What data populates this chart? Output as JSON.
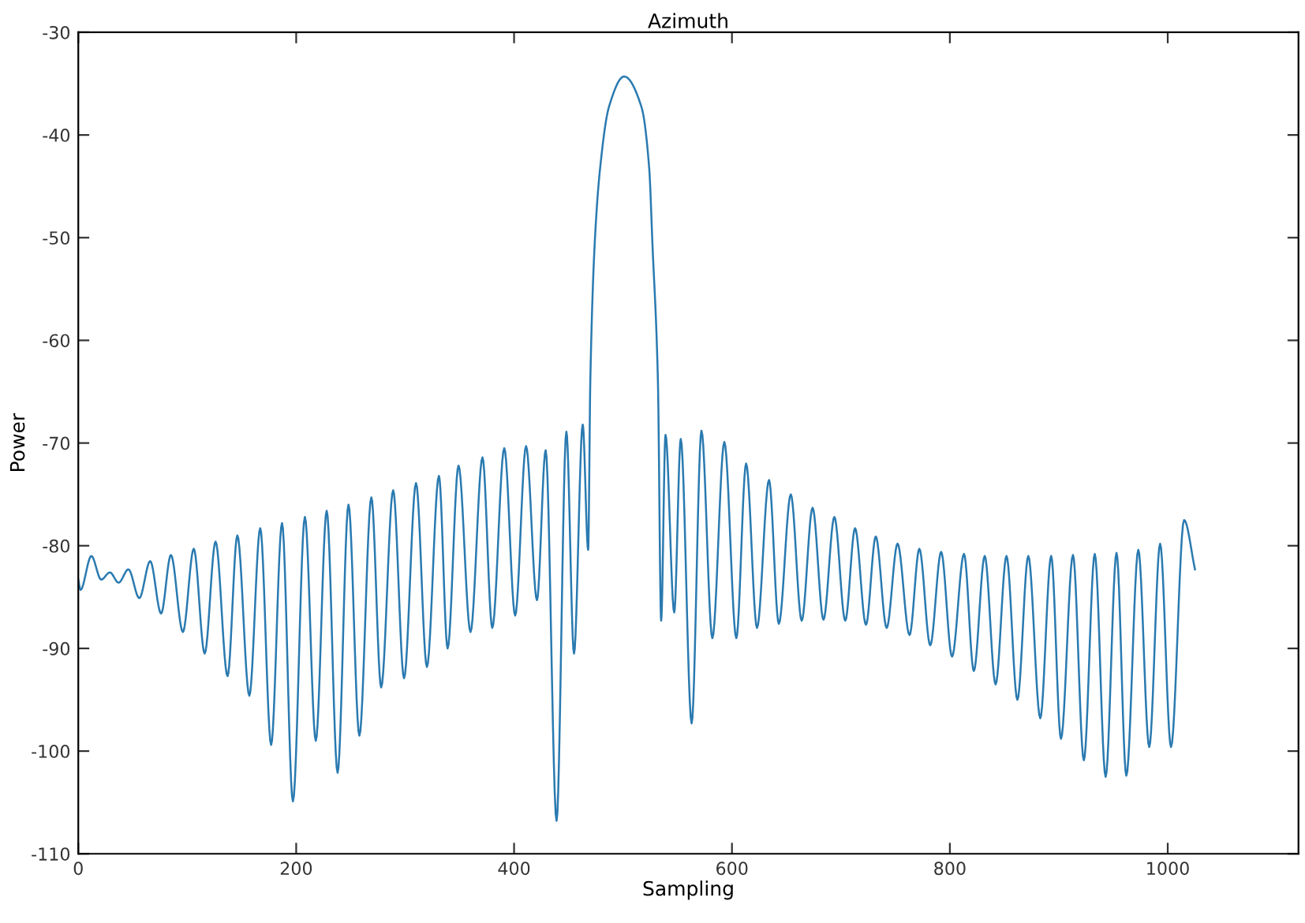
{
  "chart_data": {
    "type": "line",
    "title": "Azimuth",
    "xlabel": "Sampling",
    "ylabel": "Power",
    "x": [
      0,
      2,
      12,
      21,
      29,
      37,
      46,
      56,
      66,
      76,
      85,
      96,
      106,
      116,
      126,
      137,
      146,
      157,
      167,
      177,
      187,
      197,
      208,
      218,
      228,
      238,
      248,
      258,
      269,
      278,
      289,
      299,
      310,
      320,
      331,
      339,
      349,
      360,
      371,
      380,
      391,
      401,
      411,
      421,
      429,
      439,
      448,
      455,
      463,
      468,
      470,
      474,
      479,
      487,
      501,
      517,
      524,
      527,
      532,
      535,
      539,
      547,
      553,
      563,
      572,
      582,
      593,
      604,
      613,
      623,
      634,
      643,
      654,
      664,
      674,
      684,
      694,
      704,
      713,
      723,
      732,
      742,
      752,
      763,
      772,
      782,
      792,
      802,
      813,
      822,
      832,
      842,
      852,
      862,
      872,
      883,
      893,
      902,
      913,
      923,
      933,
      943,
      953,
      962,
      973,
      983,
      993,
      1003,
      1015,
      1025
    ],
    "series": [
      {
        "color": "#2a7ab0",
        "values": [
          -83.3,
          -84.3,
          -81.0,
          -83.3,
          -82.6,
          -83.6,
          -82.3,
          -85.1,
          -81.5,
          -86.6,
          -80.9,
          -88.4,
          -80.3,
          -90.5,
          -79.6,
          -92.7,
          -79.0,
          -94.6,
          -78.3,
          -99.4,
          -77.8,
          -104.9,
          -77.2,
          -99.0,
          -76.6,
          -102.1,
          -76.0,
          -98.5,
          -75.3,
          -93.8,
          -74.6,
          -92.9,
          -73.9,
          -91.8,
          -73.2,
          -90.0,
          -72.2,
          -88.4,
          -71.4,
          -88.0,
          -70.5,
          -86.8,
          -70.3,
          -85.3,
          -70.7,
          -106.8,
          -68.9,
          -90.5,
          -68.2,
          -80.4,
          -63.8,
          -50.6,
          -43.2,
          -37.3,
          -34.3,
          -37.3,
          -43.2,
          -50.6,
          -63.8,
          -87.3,
          -69.2,
          -86.5,
          -69.6,
          -97.3,
          -68.8,
          -89.0,
          -69.9,
          -89.0,
          -72.0,
          -88.0,
          -73.6,
          -87.6,
          -75.0,
          -87.3,
          -76.3,
          -87.2,
          -77.2,
          -87.3,
          -78.3,
          -87.7,
          -79.1,
          -88.0,
          -79.8,
          -88.7,
          -80.3,
          -89.7,
          -80.6,
          -90.8,
          -80.8,
          -92.2,
          -81.0,
          -93.5,
          -81.0,
          -95.0,
          -81.0,
          -96.8,
          -81.0,
          -98.8,
          -80.9,
          -100.9,
          -80.8,
          -102.5,
          -80.7,
          -102.4,
          -80.4,
          -99.6,
          -79.8,
          -99.6,
          -77.5,
          -82.3
        ]
      }
    ],
    "xlim": [
      0,
      1120
    ],
    "xticks": [
      0,
      200,
      400,
      600,
      800,
      1000
    ],
    "ylim": [
      -110,
      -30
    ],
    "yticks": [
      -110,
      -100,
      -90,
      -80,
      -70,
      -60,
      -50,
      -40,
      -30
    ],
    "grid": false,
    "marker": "none",
    "line_style": "solid"
  }
}
